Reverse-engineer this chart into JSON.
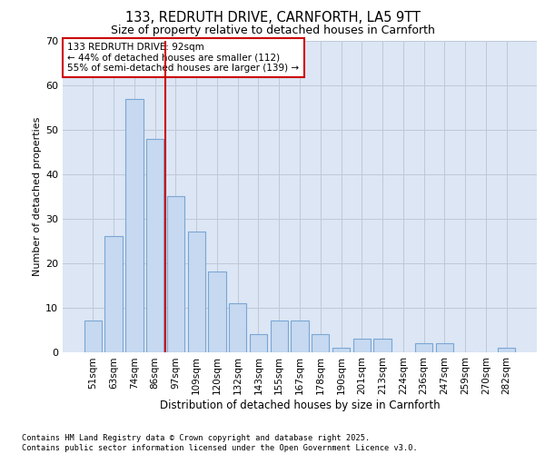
{
  "title1": "133, REDRUTH DRIVE, CARNFORTH, LA5 9TT",
  "title2": "Size of property relative to detached houses in Carnforth",
  "xlabel": "Distribution of detached houses by size in Carnforth",
  "ylabel": "Number of detached properties",
  "categories": [
    "51sqm",
    "63sqm",
    "74sqm",
    "86sqm",
    "97sqm",
    "109sqm",
    "120sqm",
    "132sqm",
    "143sqm",
    "155sqm",
    "167sqm",
    "178sqm",
    "190sqm",
    "201sqm",
    "213sqm",
    "224sqm",
    "236sqm",
    "247sqm",
    "259sqm",
    "270sqm",
    "282sqm"
  ],
  "values": [
    7,
    26,
    57,
    48,
    35,
    27,
    18,
    11,
    4,
    7,
    7,
    4,
    1,
    3,
    3,
    0,
    2,
    2,
    0,
    0,
    1
  ],
  "bar_color": "#c6d9f0",
  "bar_edge_color": "#7aa6d4",
  "grid_color": "#c0c8d8",
  "bg_color": "#dce6f5",
  "vline_color": "#cc0000",
  "vline_index": 3.5,
  "annotation_text": "133 REDRUTH DRIVE: 92sqm\n← 44% of detached houses are smaller (112)\n55% of semi-detached houses are larger (139) →",
  "annotation_box_color": "#cc0000",
  "ylim": [
    0,
    70
  ],
  "yticks": [
    0,
    10,
    20,
    30,
    40,
    50,
    60,
    70
  ],
  "footer1": "Contains HM Land Registry data © Crown copyright and database right 2025.",
  "footer2": "Contains public sector information licensed under the Open Government Licence v3.0."
}
